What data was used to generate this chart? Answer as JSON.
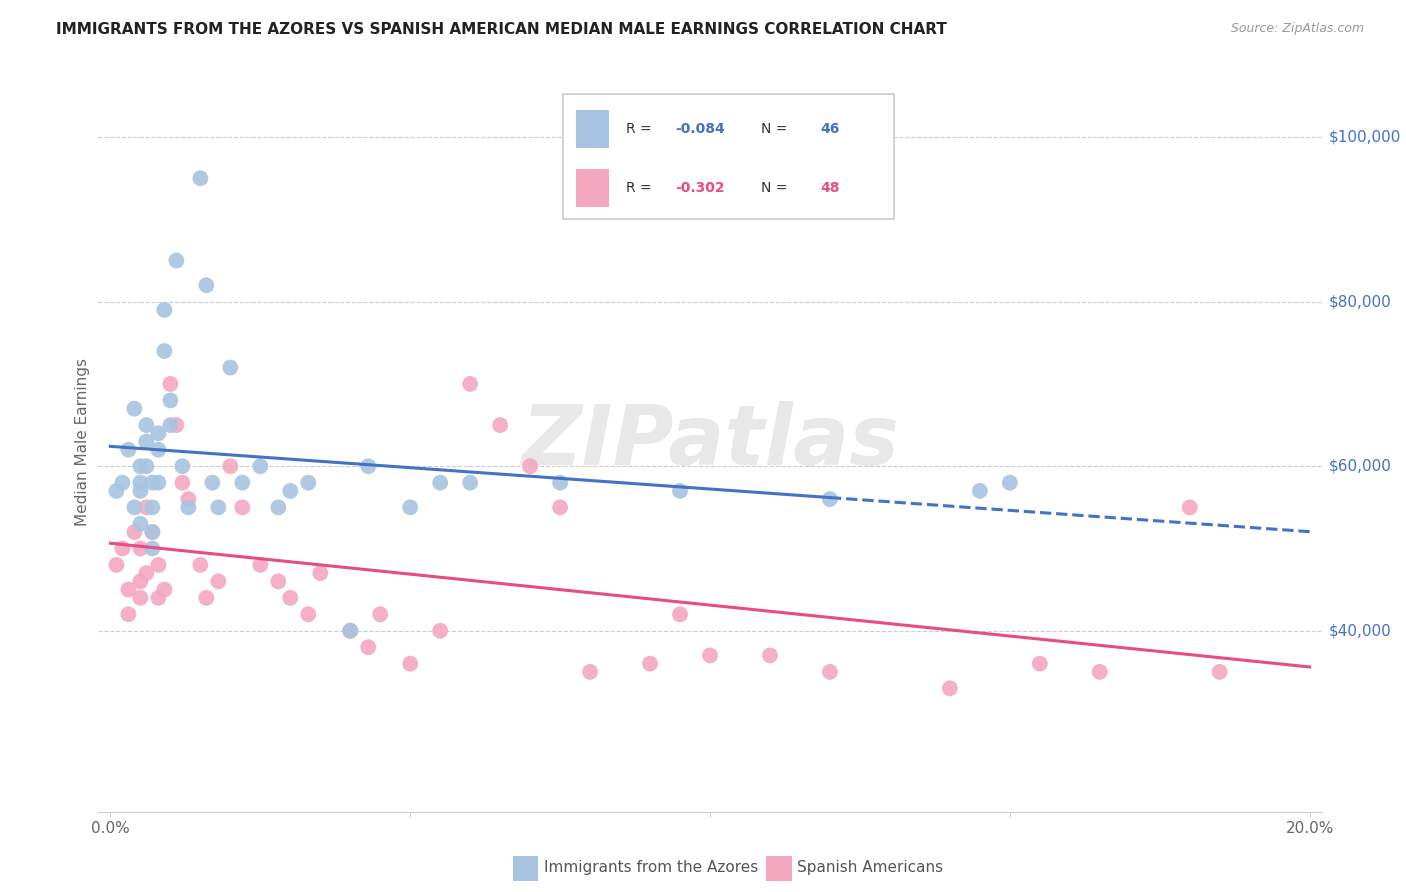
{
  "title": "IMMIGRANTS FROM THE AZORES VS SPANISH AMERICAN MEDIAN MALE EARNINGS CORRELATION CHART",
  "source": "Source: ZipAtlas.com",
  "ylabel": "Median Male Earnings",
  "xlim": [
    -0.002,
    0.202
  ],
  "ylim": [
    18000,
    108000
  ],
  "ytick_vals": [
    40000,
    60000,
    80000,
    100000
  ],
  "ytick_labels": [
    "$40,000",
    "$60,000",
    "$80,000",
    "$100,000"
  ],
  "xtick_vals": [
    0.0,
    0.05,
    0.1,
    0.15,
    0.2
  ],
  "xtick_labels": [
    "0.0%",
    "",
    "",
    "",
    "20.0%"
  ],
  "blue_line_color": "#4472c4",
  "pink_line_color": "#e84b85",
  "blue_scatter_color": "#a8c4e0",
  "pink_scatter_color": "#f4a8c0",
  "grid_color": "#cccccc",
  "R_azores": "-0.084",
  "N_azores": "46",
  "R_spanish": "-0.302",
  "N_spanish": "48",
  "azores_x": [
    0.001,
    0.002,
    0.003,
    0.004,
    0.004,
    0.005,
    0.005,
    0.005,
    0.005,
    0.006,
    0.006,
    0.006,
    0.007,
    0.007,
    0.007,
    0.007,
    0.008,
    0.008,
    0.008,
    0.009,
    0.009,
    0.01,
    0.01,
    0.011,
    0.012,
    0.013,
    0.015,
    0.016,
    0.017,
    0.018,
    0.02,
    0.022,
    0.025,
    0.028,
    0.03,
    0.033,
    0.04,
    0.043,
    0.05,
    0.055,
    0.06,
    0.075,
    0.095,
    0.12,
    0.145,
    0.15
  ],
  "azores_y": [
    57000,
    58000,
    62000,
    67000,
    55000,
    60000,
    58000,
    57000,
    53000,
    65000,
    63000,
    60000,
    58000,
    55000,
    52000,
    50000,
    64000,
    62000,
    58000,
    79000,
    74000,
    68000,
    65000,
    85000,
    60000,
    55000,
    95000,
    82000,
    58000,
    55000,
    72000,
    58000,
    60000,
    55000,
    57000,
    58000,
    40000,
    60000,
    55000,
    58000,
    58000,
    58000,
    57000,
    56000,
    57000,
    58000
  ],
  "spanish_x": [
    0.001,
    0.002,
    0.003,
    0.003,
    0.004,
    0.005,
    0.005,
    0.005,
    0.006,
    0.006,
    0.007,
    0.008,
    0.008,
    0.009,
    0.01,
    0.011,
    0.012,
    0.013,
    0.015,
    0.016,
    0.018,
    0.02,
    0.022,
    0.025,
    0.028,
    0.03,
    0.033,
    0.035,
    0.04,
    0.043,
    0.045,
    0.05,
    0.055,
    0.06,
    0.065,
    0.07,
    0.075,
    0.08,
    0.09,
    0.095,
    0.1,
    0.11,
    0.12,
    0.14,
    0.155,
    0.165,
    0.18,
    0.185
  ],
  "spanish_y": [
    48000,
    50000,
    45000,
    42000,
    52000,
    46000,
    50000,
    44000,
    55000,
    47000,
    52000,
    48000,
    44000,
    45000,
    70000,
    65000,
    58000,
    56000,
    48000,
    44000,
    46000,
    60000,
    55000,
    48000,
    46000,
    44000,
    42000,
    47000,
    40000,
    38000,
    42000,
    36000,
    40000,
    70000,
    65000,
    60000,
    55000,
    35000,
    36000,
    42000,
    37000,
    37000,
    35000,
    33000,
    36000,
    35000,
    55000,
    35000
  ]
}
